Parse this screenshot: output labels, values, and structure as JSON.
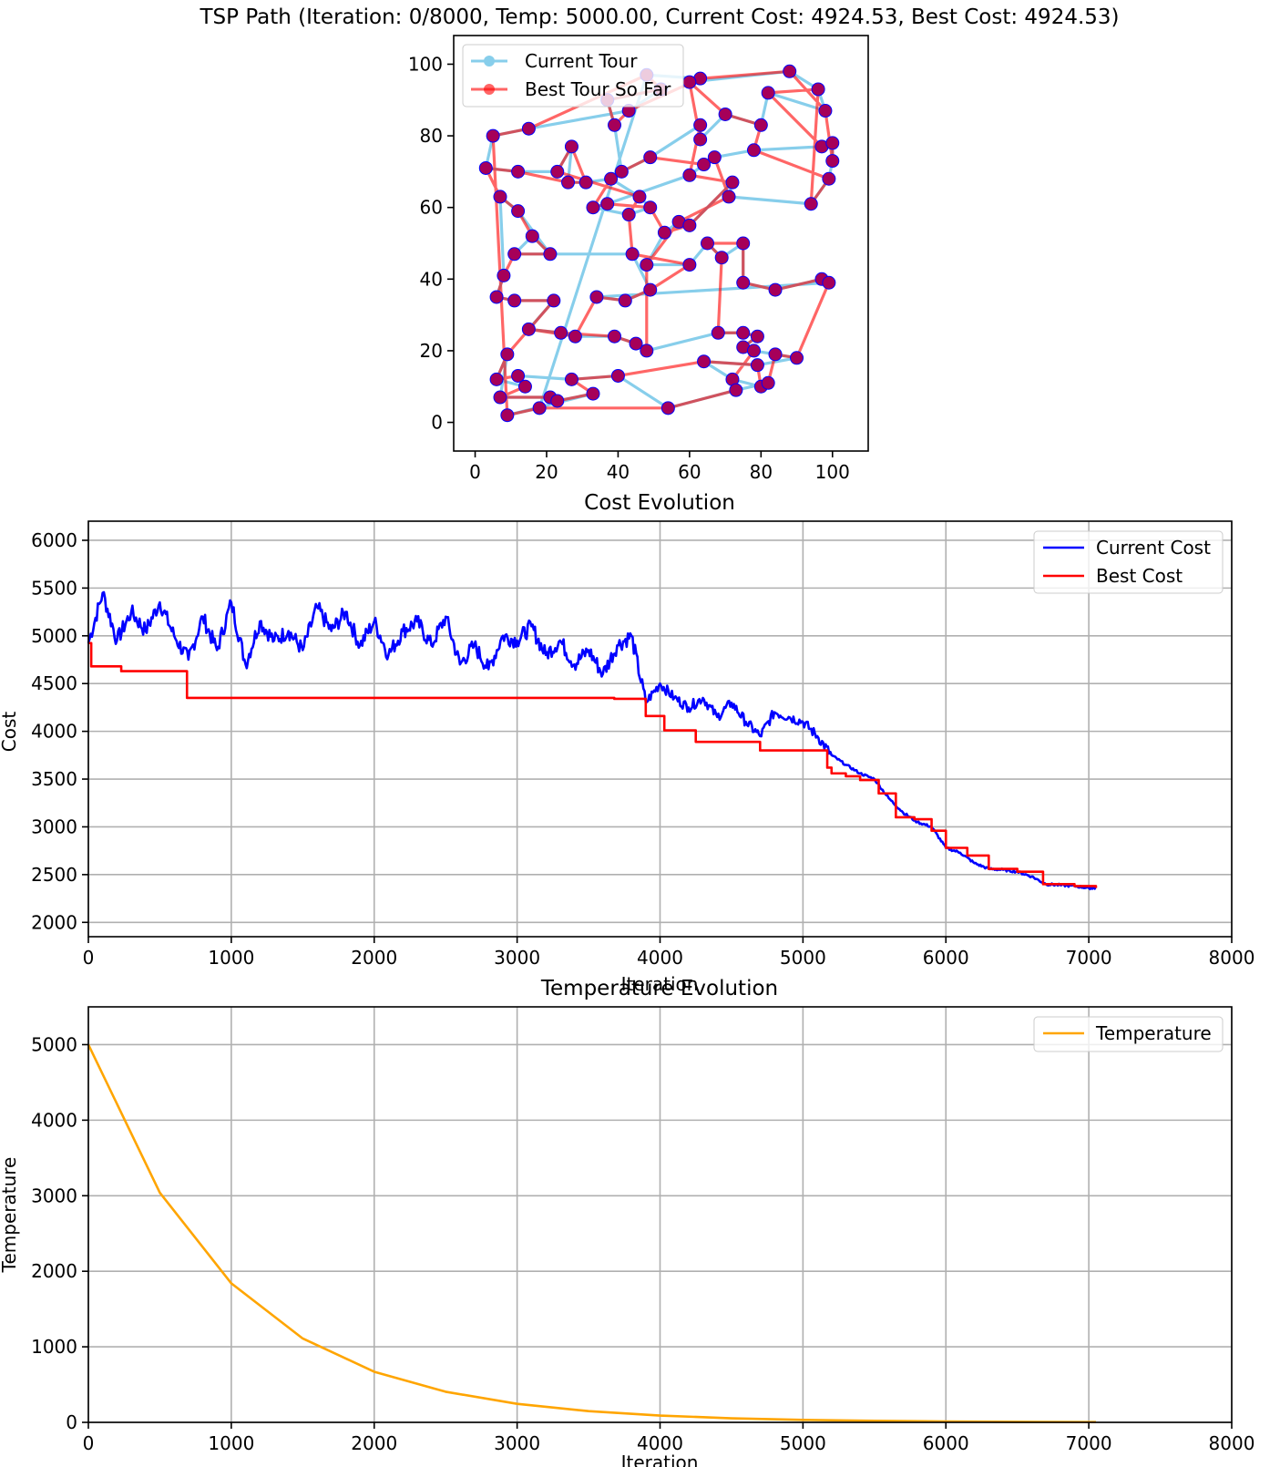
{
  "chart_data": [
    {
      "type": "scatter",
      "title": "TSP Path (Iteration: 0/8000, Temp: 5000.00, Current Cost: 4924.53, Best Cost: 4924.53)",
      "xlim": [
        -6,
        110
      ],
      "ylim": [
        -8,
        108
      ],
      "xticks": [
        0,
        20,
        40,
        60,
        80,
        100
      ],
      "yticks": [
        0,
        20,
        40,
        60,
        80,
        100
      ],
      "legend": [
        "Current Tour",
        "Best Tour So Far"
      ],
      "colors": {
        "current": "#87ceeb",
        "best": "#ff0000",
        "marker_edge": "#0000ff"
      },
      "cities": [
        [
          48,
          97
        ],
        [
          63,
          96
        ],
        [
          52,
          93
        ],
        [
          37,
          90
        ],
        [
          43,
          87
        ],
        [
          60,
          95
        ],
        [
          88,
          98
        ],
        [
          96,
          93
        ],
        [
          82,
          92
        ],
        [
          98,
          87
        ],
        [
          70,
          86
        ],
        [
          80,
          83
        ],
        [
          15,
          82
        ],
        [
          5,
          80
        ],
        [
          39,
          83
        ],
        [
          63,
          83
        ],
        [
          63,
          79
        ],
        [
          27,
          77
        ],
        [
          78,
          76
        ],
        [
          97,
          77
        ],
        [
          100,
          78
        ],
        [
          100,
          73
        ],
        [
          99,
          68
        ],
        [
          3,
          71
        ],
        [
          12,
          70
        ],
        [
          23,
          70
        ],
        [
          26,
          67
        ],
        [
          31,
          67
        ],
        [
          38,
          68
        ],
        [
          41,
          70
        ],
        [
          49,
          74
        ],
        [
          60,
          69
        ],
        [
          67,
          74
        ],
        [
          64,
          72
        ],
        [
          72,
          67
        ],
        [
          7,
          63
        ],
        [
          12,
          59
        ],
        [
          33,
          60
        ],
        [
          37,
          61
        ],
        [
          46,
          63
        ],
        [
          49,
          60
        ],
        [
          43,
          58
        ],
        [
          57,
          56
        ],
        [
          60,
          55
        ],
        [
          53,
          53
        ],
        [
          16,
          52
        ],
        [
          21,
          47
        ],
        [
          11,
          47
        ],
        [
          44,
          47
        ],
        [
          65,
          50
        ],
        [
          69,
          46
        ],
        [
          75,
          50
        ],
        [
          94,
          61
        ],
        [
          71,
          63
        ],
        [
          48,
          44
        ],
        [
          60,
          44
        ],
        [
          8,
          41
        ],
        [
          6,
          35
        ],
        [
          11,
          34
        ],
        [
          22,
          34
        ],
        [
          34,
          35
        ],
        [
          42,
          34
        ],
        [
          49,
          37
        ],
        [
          75,
          39
        ],
        [
          84,
          37
        ],
        [
          97,
          40
        ],
        [
          99,
          39
        ],
        [
          15,
          26
        ],
        [
          24,
          25
        ],
        [
          28,
          24
        ],
        [
          39,
          24
        ],
        [
          45,
          22
        ],
        [
          48,
          20
        ],
        [
          68,
          25
        ],
        [
          75,
          25
        ],
        [
          79,
          24
        ],
        [
          75,
          21
        ],
        [
          78,
          20
        ],
        [
          84,
          19
        ],
        [
          90,
          18
        ],
        [
          79,
          16
        ],
        [
          64,
          17
        ],
        [
          9,
          19
        ],
        [
          6,
          12
        ],
        [
          14,
          10
        ],
        [
          12,
          13
        ],
        [
          27,
          12
        ],
        [
          40,
          13
        ],
        [
          72,
          12
        ],
        [
          80,
          10
        ],
        [
          82,
          11
        ],
        [
          7,
          7
        ],
        [
          21,
          7
        ],
        [
          23,
          6
        ],
        [
          33,
          8
        ],
        [
          73,
          9
        ],
        [
          54,
          4
        ],
        [
          9,
          2
        ],
        [
          18,
          4
        ]
      ],
      "current_tour": [
        0,
        1,
        5,
        6,
        7,
        9,
        8,
        11,
        10,
        16,
        15,
        30,
        29,
        14,
        3,
        2,
        4,
        12,
        13,
        23,
        24,
        25,
        17,
        26,
        27,
        28,
        39,
        40,
        41,
        37,
        38,
        31,
        33,
        32,
        18,
        19,
        20,
        21,
        22,
        52,
        53,
        34,
        43,
        42,
        44,
        54,
        55,
        49,
        50,
        51,
        63,
        64,
        65,
        66,
        60,
        61,
        62,
        48,
        47,
        45,
        46,
        36,
        35,
        56,
        57,
        58,
        59,
        67,
        68,
        69,
        70,
        71,
        72,
        73,
        74,
        75,
        76,
        77,
        78,
        79,
        80,
        81,
        88,
        89,
        90,
        95,
        96,
        87,
        86,
        85,
        84,
        83,
        82,
        91,
        92,
        93,
        94,
        97,
        98,
        0
      ],
      "best_tour": [
        0,
        2,
        3,
        14,
        4,
        1,
        6,
        9,
        21,
        20,
        19,
        8,
        7,
        52,
        22,
        18,
        11,
        10,
        5,
        16,
        15,
        31,
        34,
        43,
        44,
        40,
        38,
        37,
        28,
        29,
        30,
        33,
        32,
        53,
        42,
        54,
        72,
        71,
        70,
        68,
        67,
        69,
        60,
        61,
        62,
        55,
        48,
        41,
        39,
        25,
        17,
        27,
        26,
        24,
        23,
        35,
        36,
        45,
        46,
        47,
        56,
        57,
        58,
        59,
        82,
        83,
        85,
        84,
        91,
        92,
        93,
        94,
        86,
        87,
        81,
        80,
        89,
        90,
        78,
        79,
        66,
        65,
        64,
        63,
        51,
        49,
        50,
        73,
        74,
        75,
        76,
        77,
        88,
        95,
        96,
        98,
        97,
        13,
        12,
        0
      ]
    },
    {
      "type": "line",
      "title": "Cost Evolution",
      "xlabel": "Iteration",
      "ylabel": "Cost",
      "xlim": [
        0,
        8000
      ],
      "ylim": [
        1850,
        6200
      ],
      "xticks": [
        0,
        1000,
        2000,
        3000,
        4000,
        5000,
        6000,
        7000,
        8000
      ],
      "yticks": [
        2000,
        2500,
        3000,
        3500,
        4000,
        4500,
        5000,
        5500,
        6000
      ],
      "legend": [
        "Current Cost",
        "Best Cost"
      ],
      "colors": {
        "current": "#0000ff",
        "best": "#ff0000"
      },
      "series": [
        {
          "name": "Best Cost",
          "x": [
            0,
            20,
            230,
            690,
            3000,
            3680,
            3900,
            4030,
            4250,
            4700,
            5000,
            5170,
            5200,
            5300,
            5400,
            5530,
            5650,
            5780,
            5900,
            6000,
            6150,
            6300,
            6500,
            6680,
            6900,
            7050
          ],
          "values": [
            4924,
            4680,
            4630,
            4350,
            4350,
            4340,
            4160,
            4010,
            3890,
            3800,
            3800,
            3620,
            3560,
            3530,
            3490,
            3350,
            3100,
            3080,
            2960,
            2780,
            2700,
            2560,
            2530,
            2400,
            2380,
            2360
          ]
        },
        {
          "name": "Current Cost",
          "x": [
            0,
            100,
            200,
            300,
            400,
            500,
            600,
            700,
            800,
            900,
            1000,
            1100,
            1200,
            1300,
            1400,
            1500,
            1600,
            1700,
            1800,
            1900,
            2000,
            2100,
            2200,
            2300,
            2400,
            2500,
            2600,
            2700,
            2800,
            2900,
            3000,
            3100,
            3200,
            3300,
            3400,
            3500,
            3600,
            3700,
            3800,
            3900,
            4000,
            4100,
            4200,
            4300,
            4400,
            4500,
            4600,
            4700,
            4800,
            4900,
            5000,
            5100,
            5200,
            5300,
            5400,
            5500,
            5600,
            5700,
            5800,
            5900,
            6000,
            6100,
            6200,
            6300,
            6400,
            6500,
            6600,
            6700,
            6800,
            6900,
            7000,
            7050
          ],
          "values": [
            4924,
            5450,
            4950,
            5250,
            5050,
            5350,
            5000,
            4750,
            5200,
            4850,
            5350,
            4700,
            5150,
            4950,
            5050,
            4850,
            5300,
            5050,
            5250,
            4900,
            5150,
            4800,
            5050,
            5150,
            4900,
            5200,
            4700,
            4900,
            4650,
            5000,
            4950,
            5100,
            4800,
            4950,
            4700,
            4850,
            4600,
            4900,
            5000,
            4300,
            4500,
            4350,
            4250,
            4350,
            4150,
            4300,
            4100,
            3950,
            4200,
            4150,
            4100,
            3950,
            3750,
            3650,
            3560,
            3500,
            3300,
            3150,
            3050,
            3000,
            2780,
            2730,
            2620,
            2560,
            2550,
            2530,
            2480,
            2400,
            2390,
            2380,
            2360,
            2360
          ]
        }
      ]
    },
    {
      "type": "line",
      "title": "Temperature Evolution",
      "xlabel": "Iteration",
      "ylabel": "Temperature",
      "xlim": [
        0,
        8000
      ],
      "ylim": [
        0,
        5500
      ],
      "xticks": [
        0,
        1000,
        2000,
        3000,
        4000,
        5000,
        6000,
        7000,
        8000
      ],
      "yticks": [
        0,
        1000,
        2000,
        3000,
        4000,
        5000
      ],
      "legend": [
        "Temperature"
      ],
      "colors": {
        "temperature": "#ffa500"
      },
      "series": [
        {
          "name": "Temperature",
          "x": [
            0,
            500,
            1000,
            1500,
            2000,
            2500,
            3000,
            3500,
            4000,
            4500,
            5000,
            5500,
            6000,
            6500,
            7000,
            7050
          ],
          "values": [
            5000,
            3040,
            1840,
            1110,
            670,
            405,
            245,
            148,
            90,
            54,
            33,
            20,
            12,
            7,
            4,
            4
          ]
        }
      ]
    }
  ]
}
